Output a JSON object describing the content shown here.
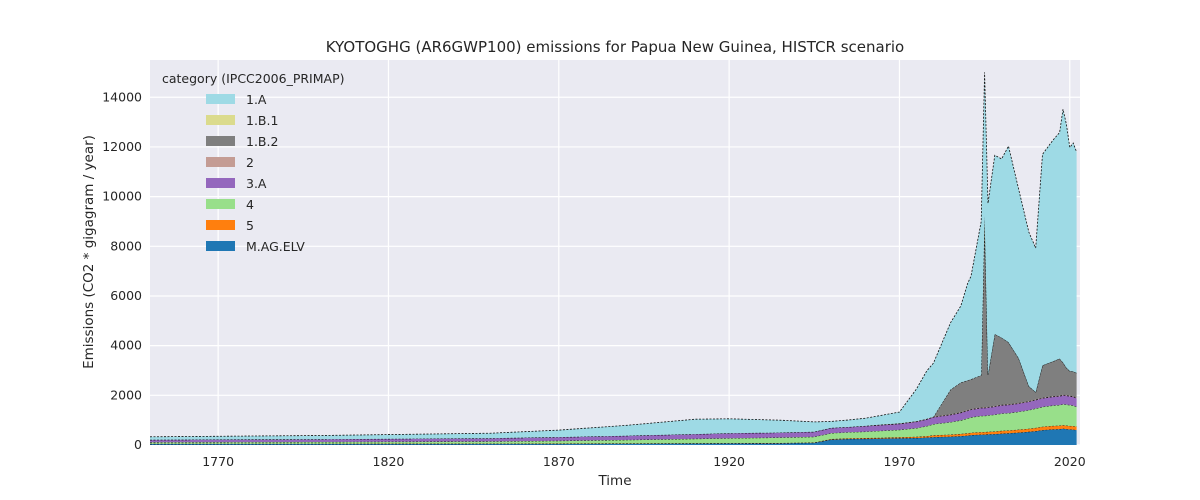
{
  "chart_data": {
    "type": "area",
    "title": "KYOTOGHG (AR6GWP100) emissions for Papua New Guinea, HISTCR scenario",
    "xlabel": "Time",
    "ylabel": "Emissions (CO2 * gigagram / year)",
    "xlim": [
      1750,
      2023
    ],
    "ylim": [
      0,
      15500
    ],
    "xticks": [
      1770,
      1820,
      1870,
      1920,
      1970,
      2020
    ],
    "yticks": [
      0,
      2000,
      4000,
      6000,
      8000,
      10000,
      12000,
      14000
    ],
    "grid": true,
    "legend": {
      "title": "category (IPCC2006_PRIMAP)",
      "position": "top-left"
    },
    "x": [
      1750,
      1800,
      1850,
      1870,
      1890,
      1910,
      1920,
      1935,
      1945,
      1950,
      1955,
      1960,
      1965,
      1970,
      1975,
      1978,
      1980,
      1985,
      1988,
      1990,
      1991,
      1994,
      1995,
      1996,
      1998,
      2000,
      2002,
      2005,
      2008,
      2010,
      2012,
      2015,
      2017,
      2018,
      2019,
      2020,
      2021,
      2022
    ],
    "series": [
      {
        "name": "M.AG.ELV",
        "color": "#1f77b4",
        "values": [
          40,
          42,
          45,
          50,
          55,
          60,
          65,
          70,
          90,
          220,
          240,
          250,
          260,
          270,
          280,
          300,
          320,
          340,
          360,
          380,
          400,
          420,
          420,
          430,
          440,
          460,
          470,
          500,
          530,
          560,
          600,
          630,
          640,
          660,
          640,
          630,
          620,
          600
        ]
      },
      {
        "name": "5",
        "color": "#ff7f0e",
        "values": [
          10,
          10,
          10,
          10,
          10,
          10,
          10,
          10,
          12,
          20,
          25,
          30,
          35,
          40,
          50,
          60,
          70,
          80,
          85,
          90,
          95,
          100,
          100,
          100,
          105,
          110,
          115,
          120,
          125,
          130,
          135,
          140,
          140,
          140,
          140,
          140,
          140,
          140
        ]
      },
      {
        "name": "4",
        "color": "#98df8a",
        "values": [
          60,
          70,
          90,
          110,
          140,
          180,
          200,
          220,
          230,
          240,
          250,
          260,
          280,
          300,
          350,
          400,
          450,
          500,
          550,
          600,
          620,
          650,
          650,
          660,
          680,
          700,
          700,
          720,
          750,
          780,
          800,
          820,
          830,
          840,
          850,
          840,
          830,
          800
        ]
      },
      {
        "name": "3.A",
        "color": "#9467bd",
        "values": [
          100,
          110,
          130,
          150,
          170,
          190,
          200,
          200,
          200,
          210,
          210,
          220,
          230,
          240,
          260,
          270,
          280,
          290,
          300,
          310,
          310,
          320,
          320,
          320,
          320,
          330,
          330,
          330,
          340,
          340,
          350,
          350,
          350,
          360,
          360,
          350,
          350,
          340
        ]
      },
      {
        "name": "2",
        "color": "#c49c94",
        "values": [
          0,
          0,
          0,
          0,
          0,
          0,
          0,
          0,
          0,
          0,
          0,
          10,
          20,
          20,
          20,
          20,
          20,
          20,
          20,
          20,
          20,
          20,
          20,
          20,
          20,
          20,
          20,
          20,
          20,
          20,
          20,
          20,
          20,
          20,
          20,
          20,
          20,
          20
        ]
      },
      {
        "name": "1.B.2",
        "color": "#7f7f7f",
        "values": [
          0,
          0,
          0,
          0,
          0,
          0,
          0,
          0,
          0,
          0,
          0,
          0,
          0,
          0,
          0,
          0,
          0,
          1000,
          1200,
          1200,
          1200,
          1300,
          7300,
          1300,
          2900,
          2700,
          2500,
          1800,
          600,
          300,
          1300,
          1400,
          1500,
          1300,
          1100,
          1000,
          1000,
          1000
        ]
      },
      {
        "name": "1.B.1",
        "color": "#dbdb8d",
        "values": [
          0,
          0,
          0,
          0,
          0,
          0,
          0,
          0,
          0,
          0,
          0,
          0,
          0,
          0,
          0,
          0,
          0,
          0,
          0,
          0,
          0,
          0,
          400,
          0,
          0,
          0,
          0,
          0,
          0,
          0,
          0,
          0,
          0,
          0,
          0,
          0,
          0,
          0
        ]
      },
      {
        "name": "1.A",
        "color": "#9edae5",
        "values": [
          120,
          150,
          200,
          280,
          420,
          600,
          580,
          500,
          400,
          260,
          280,
          310,
          375,
          460,
          1300,
          1930,
          2160,
          2690,
          3080,
          3900,
          4150,
          6190,
          5790,
          6900,
          7200,
          7200,
          7900,
          6800,
          6200,
          5800,
          8500,
          8900,
          9100,
          10200,
          9800,
          9000,
          9200,
          8900
        ]
      }
    ]
  }
}
